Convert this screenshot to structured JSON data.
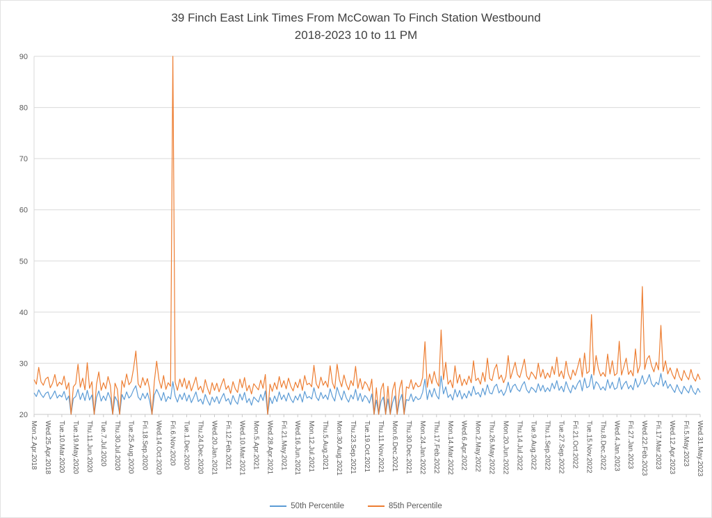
{
  "title": {
    "line1": "39 Finch East Link Times From McCowan To Finch Station Westbound",
    "line2": "2018-2023 10 to 11 PM"
  },
  "chart_data": {
    "type": "line",
    "title": "39 Finch East Link Times From McCowan To Finch Station Westbound 2018-2023 10 to 11 PM",
    "ylim": [
      20,
      90
    ],
    "ytick_step": 10,
    "grid": true,
    "legend_position": "bottom",
    "x_labels": [
      "Mon.2.Apr.2018",
      "Wed.25.Apr.2018",
      "Tue.10.Mar.2020",
      "Tue.19.May.2020",
      "Thu.11.Jun.2020",
      "Tue.7.Jul.2020",
      "Thu.30.Jul.2020",
      "Tue.25.Aug.2020",
      "Fri.18.Sep.2020",
      "Wed.14.Oct.2020",
      "Fri.6.Nov.2020",
      "Tue.1.Dec.2020",
      "Thu.24.Dec.2020",
      "Wed.20.Jan.2021",
      "Fri.12.Feb.2021",
      "Wed.10.Mar.2021",
      "Mon.5.Apr.2021",
      "Wed.28.Apr.2021",
      "Fri.21.May.2021",
      "Wed.16.Jun.2021",
      "Mon.12.Jul.2021",
      "Thu.5.Aug.2021",
      "Mon.30.Aug.2021",
      "Thu.23.Sep.2021",
      "Tue.19.Oct.2021",
      "Thu.11.Nov.2021",
      "Mon.6.Dec.2021",
      "Thu.30.Dec.2021",
      "Mon.24.Jan.2022",
      "Thu.17.Feb.2022",
      "Mon.14.Mar.2022",
      "Wed.6.Apr.2022",
      "Mon.2.May.2022",
      "Thu.26.May.2022",
      "Mon.20.Jun.2022",
      "Thu.14.Jul.2022",
      "Tue.9.Aug.2022",
      "Thu.1.Sep.2022",
      "Tue.27.Sep.2022",
      "Fri.21.Oct.2022",
      "Tue.15.Nov.2022",
      "Thu.8.Dec.2022",
      "Wed.4.Jan.2023",
      "Fri.27.Jan.2023",
      "Wed.22.Feb.2023",
      "Fri.17.Mar.2023",
      "Wed.12.Apr.2023",
      "Fri.5.May.2023",
      "Wed.31.May.2023"
    ],
    "series": [
      {
        "name": "50th Percentile",
        "color": "#5B9BD5",
        "values": [
          24.2,
          23.5,
          24.8,
          23.9,
          23.3,
          24.1,
          24.4,
          23.0,
          23.7,
          24.6,
          23.2,
          23.8,
          23.4,
          24.5,
          22.8,
          23.6,
          0,
          23.1,
          23.5,
          24.9,
          22.9,
          24.2,
          22.7,
          24.7,
          22.8,
          23.8,
          0,
          23.3,
          24.6,
          22.6,
          23.6,
          22.7,
          24.3,
          23.1,
          0,
          23.5,
          22.6,
          0,
          23.9,
          22.9,
          24.4,
          23.2,
          23.7,
          24.8,
          25.6,
          23.4,
          22.8,
          24.1,
          23.1,
          24.2,
          22.6,
          0,
          23.8,
          24.9,
          23.9,
          22.7,
          24.3,
          22.5,
          23.5,
          23.0,
          26.4,
          23.6,
          22.4,
          23.9,
          22.9,
          24.2,
          22.6,
          23.8,
          22.3,
          23.3,
          24.4,
          22.5,
          23.0,
          22.0,
          23.9,
          22.7,
          21.8,
          23.4,
          22.4,
          23.5,
          22.1,
          23.2,
          24.1,
          22.6,
          23.1,
          21.9,
          23.7,
          22.6,
          22.0,
          24.0,
          22.8,
          24.3,
          22.3,
          23.1,
          21.8,
          23.4,
          22.9,
          22.4,
          23.9,
          22.7,
          24.6,
          0,
          23.3,
          22.1,
          23.6,
          22.5,
          24.4,
          22.9,
          23.8,
          22.6,
          24.2,
          23.0,
          22.3,
          23.6,
          22.8,
          24.0,
          22.4,
          24.5,
          23.2,
          23.5,
          23.0,
          25.2,
          23.4,
          22.7,
          24.3,
          23.1,
          23.8,
          22.9,
          25.0,
          23.5,
          22.6,
          25.3,
          23.9,
          22.8,
          24.6,
          23.2,
          22.4,
          23.8,
          23.0,
          24.9,
          22.7,
          24.1,
          22.5,
          23.7,
          23.2,
          22.2,
          24.0,
          0,
          22.8,
          0,
          22.5,
          23.4,
          0,
          23.0,
          0,
          22.3,
          23.6,
          0,
          22.6,
          23.9,
          0,
          22.9,
          22.7,
          24.0,
          22.5,
          23.5,
          22.9,
          23.1,
          24.3,
          26.9,
          22.9,
          24.8,
          23.4,
          25.1,
          23.7,
          23.0,
          27.5,
          24.0,
          25.4,
          23.3,
          23.9,
          22.8,
          24.9,
          23.4,
          24.7,
          23.0,
          24.1,
          23.2,
          24.6,
          23.6,
          25.5,
          23.9,
          24.3,
          23.4,
          25.1,
          23.8,
          25.8,
          24.2,
          24.0,
          25.4,
          25.9,
          24.2,
          24.8,
          23.7,
          24.6,
          26.3,
          24.3,
          25.5,
          25.9,
          24.9,
          24.5,
          25.7,
          26.4,
          24.8,
          24.2,
          25.3,
          24.9,
          24.3,
          26.0,
          24.6,
          25.7,
          24.4,
          25.2,
          24.5,
          26.1,
          25.0,
          26.6,
          24.7,
          25.5,
          24.4,
          26.4,
          25.1,
          24.2,
          25.7,
          24.9,
          26.0,
          26.7,
          24.6,
          27.1,
          25.2,
          25.5,
          27.8,
          24.9,
          26.4,
          25.9,
          24.8,
          25.4,
          24.7,
          26.8,
          25.1,
          26.3,
          24.9,
          25.2,
          27.2,
          24.9,
          25.9,
          26.5,
          25.0,
          25.7,
          24.8,
          27.0,
          25.3,
          26.1,
          27.6,
          25.9,
          26.5,
          27.8,
          26.0,
          25.4,
          26.3,
          25.8,
          28.0,
          25.5,
          26.6,
          25.1,
          25.9,
          25.0,
          24.3,
          25.8,
          24.7,
          24.0,
          25.5,
          24.8,
          24.2,
          25.7,
          24.5,
          23.9,
          25.1,
          24.3
        ]
      },
      {
        "name": "85th Percentile",
        "color": "#ED7D31",
        "values": [
          26.8,
          25.9,
          29.2,
          26.4,
          25.7,
          26.9,
          27.3,
          25.2,
          26.1,
          27.8,
          25.5,
          26.3,
          25.8,
          27.5,
          24.9,
          26.2,
          0,
          25.4,
          26.0,
          29.8,
          25.3,
          27.1,
          24.8,
          30.1,
          25.1,
          26.4,
          0,
          25.9,
          28.3,
          24.7,
          26.2,
          25.0,
          27.4,
          25.6,
          0,
          26.1,
          24.9,
          0,
          26.6,
          25.3,
          27.9,
          25.8,
          26.4,
          28.9,
          32.4,
          26.0,
          25.2,
          27.2,
          25.7,
          27.0,
          24.8,
          0,
          26.5,
          30.4,
          26.8,
          25.1,
          27.6,
          24.9,
          26.2,
          25.5,
          90,
          26.3,
          24.7,
          26.9,
          25.4,
          27.1,
          25.0,
          26.6,
          24.6,
          25.9,
          27.3,
          24.8,
          25.5,
          24.2,
          26.8,
          25.1,
          23.9,
          26.2,
          24.7,
          26.1,
          24.4,
          25.8,
          27.0,
          24.9,
          25.6,
          24.1,
          26.4,
          25.0,
          24.3,
          26.9,
          25.2,
          27.2,
          24.6,
          25.7,
          24.0,
          26.0,
          25.4,
          24.8,
          26.7,
          25.1,
          27.8,
          0,
          25.9,
          24.5,
          26.2,
          24.9,
          27.4,
          25.3,
          26.6,
          25.0,
          27.1,
          25.5,
          24.6,
          26.3,
          25.2,
          26.9,
          24.7,
          27.6,
          25.8,
          26.1,
          25.4,
          29.6,
          26.0,
          25.1,
          27.3,
          25.7,
          26.5,
          25.3,
          29.5,
          26.2,
          25.0,
          29.8,
          26.8,
          25.4,
          27.7,
          25.9,
          24.8,
          26.6,
          25.6,
          29.4,
          25.1,
          27.0,
          24.9,
          26.4,
          25.8,
          24.6,
          26.9,
          0,
          25.2,
          0,
          24.9,
          26.1,
          0,
          25.5,
          0,
          24.7,
          26.3,
          0,
          25.0,
          26.7,
          0,
          25.4,
          25.1,
          26.8,
          24.9,
          26.2,
          25.4,
          25.6,
          27.2,
          34.2,
          25.3,
          27.9,
          26.0,
          28.4,
          26.4,
          25.5,
          36.5,
          26.8,
          30.2,
          25.9,
          26.7,
          25.2,
          29.5,
          26.1,
          27.8,
          25.6,
          26.9,
          25.8,
          27.5,
          26.2,
          30.5,
          26.6,
          27.1,
          25.9,
          28.2,
          26.4,
          31.0,
          27.0,
          26.6,
          28.8,
          29.8,
          26.9,
          27.7,
          26.2,
          27.4,
          31.5,
          27.0,
          28.6,
          30.2,
          27.8,
          27.2,
          28.9,
          30.8,
          27.5,
          26.8,
          28.3,
          27.7,
          26.9,
          30.0,
          27.3,
          28.8,
          27.0,
          28.1,
          27.2,
          29.4,
          27.8,
          31.2,
          27.4,
          28.5,
          27.0,
          30.4,
          27.9,
          26.8,
          28.7,
          27.6,
          29.2,
          31.0,
          27.3,
          32.0,
          28.0,
          28.4,
          39.5,
          27.7,
          31.5,
          28.9,
          27.5,
          28.2,
          27.4,
          31.8,
          27.9,
          30.5,
          27.6,
          28.0,
          34.3,
          27.7,
          29.3,
          31.0,
          27.8,
          28.6,
          27.5,
          32.8,
          28.1,
          29.6,
          45.0,
          28.8,
          30.8,
          31.5,
          29.5,
          28.3,
          30.2,
          28.7,
          37.4,
          28.4,
          30.5,
          27.9,
          29.1,
          27.8,
          26.9,
          29.0,
          27.4,
          26.6,
          28.6,
          27.5,
          26.8,
          28.8,
          27.2,
          26.5,
          27.9,
          26.8
        ]
      }
    ],
    "colors": {
      "gridline": "#d9d9d9",
      "axis_line": "#c9c9c9",
      "tick_label": "#595959",
      "title_text": "#404040"
    }
  }
}
